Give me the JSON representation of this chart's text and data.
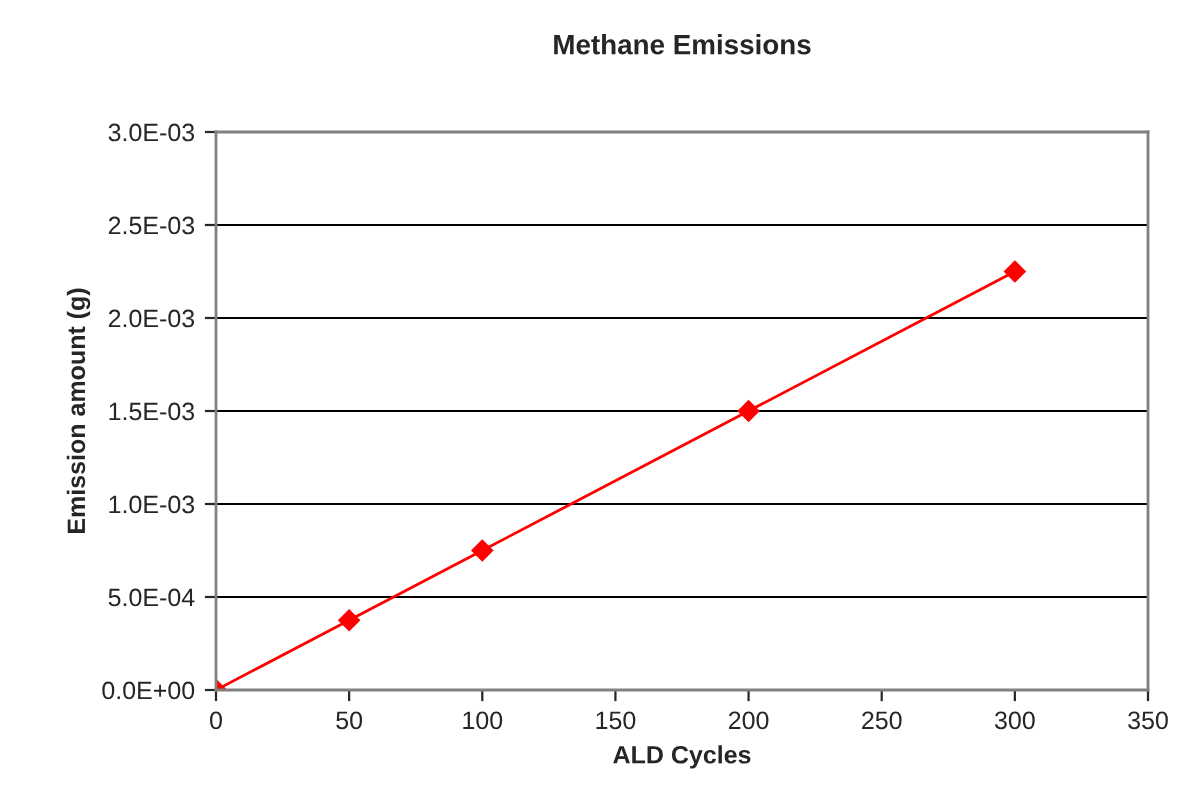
{
  "chart_data": {
    "type": "line",
    "title": "Methane Emissions",
    "xlabel": "ALD Cycles",
    "ylabel": "Emission amount (g)",
    "x": [
      0,
      50,
      100,
      200,
      300
    ],
    "series": [
      {
        "color": "#ff0000",
        "values": [
          0,
          0.000375,
          0.00075,
          0.0015,
          0.00225
        ]
      }
    ],
    "xlim": [
      0,
      350
    ],
    "xticks": [
      0,
      50,
      100,
      150,
      200,
      250,
      300,
      350
    ],
    "ylim": [
      0,
      0.003
    ],
    "yticks": [
      {
        "value": 0,
        "label": "0.0E+00"
      },
      {
        "value": 0.0005,
        "label": "5.0E-04"
      },
      {
        "value": 0.001,
        "label": "1.0E-03"
      },
      {
        "value": 0.0015,
        "label": "1.5E-03"
      },
      {
        "value": 0.002,
        "label": "2.0E-03"
      },
      {
        "value": 0.0025,
        "label": "2.5E-03"
      },
      {
        "value": 0.003,
        "label": "3.0E-03"
      }
    ],
    "grid": "y",
    "legend": false,
    "marker": "diamond",
    "line_style": "solid"
  }
}
